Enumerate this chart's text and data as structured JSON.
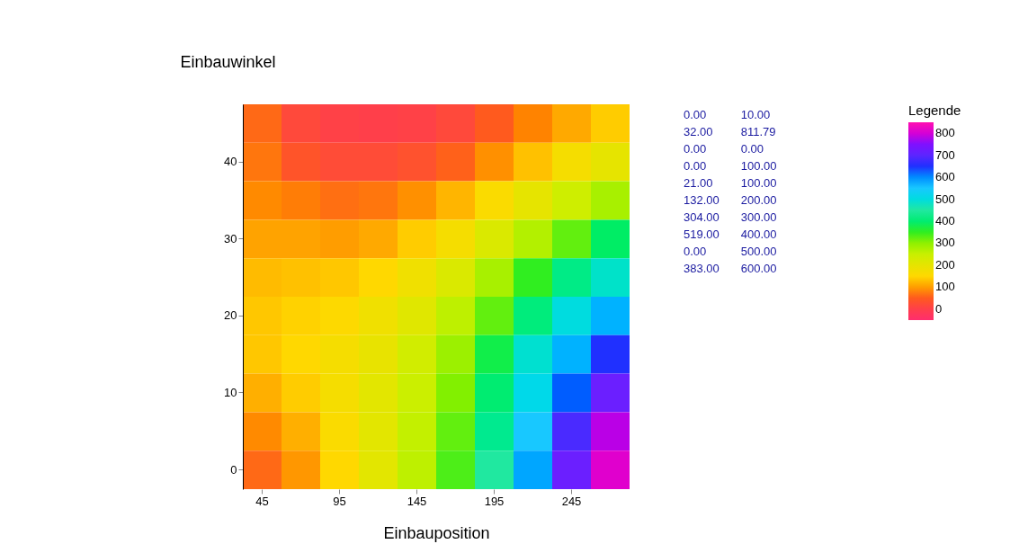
{
  "chart_data": {
    "type": "heatmap",
    "xlabel": "Einbauposition",
    "ylabel": "Einbauwinkel",
    "clabel": "Legende",
    "categories": [
      "45",
      null,
      "95",
      null,
      "145",
      null,
      "195",
      null,
      "245",
      null
    ],
    "y_categories": [
      null,
      "40",
      null,
      "30",
      null,
      "20",
      null,
      "10",
      null,
      "0"
    ],
    "cells": [
      [
        60,
        20,
        5,
        0,
        5,
        20,
        50,
        80,
        110,
        140
      ],
      [
        70,
        40,
        25,
        25,
        35,
        55,
        90,
        130,
        170,
        200
      ],
      [
        85,
        75,
        65,
        70,
        90,
        120,
        160,
        200,
        240,
        280
      ],
      [
        105,
        105,
        100,
        110,
        140,
        170,
        220,
        270,
        330,
        390
      ],
      [
        125,
        130,
        135,
        150,
        180,
        220,
        280,
        350,
        420,
        480
      ],
      [
        135,
        145,
        155,
        180,
        210,
        260,
        330,
        410,
        500,
        570
      ],
      [
        135,
        150,
        170,
        195,
        235,
        290,
        370,
        486,
        570,
        650
      ],
      [
        115,
        140,
        170,
        205,
        245,
        310,
        400,
        510,
        630,
        720
      ],
      [
        85,
        115,
        160,
        205,
        255,
        330,
        430,
        550,
        680,
        780
      ],
      [
        60,
        95,
        150,
        205,
        260,
        340,
        450,
        580,
        720,
        810
      ]
    ],
    "clim": [
      -50,
      850
    ],
    "cticks": [
      0,
      100,
      200,
      300,
      400,
      500,
      600,
      700,
      800
    ],
    "annotations": [
      "0.00",
      "32.00",
      "0.00",
      "0.00",
      "21.00",
      "132.00",
      "304.00",
      "519.00",
      "0.00",
      "383.00",
      "10.00",
      "811.79",
      "0.00",
      "100.00",
      "100.00",
      "200.00",
      "300.00",
      "400.00",
      "500.00",
      "600.00"
    ]
  }
}
